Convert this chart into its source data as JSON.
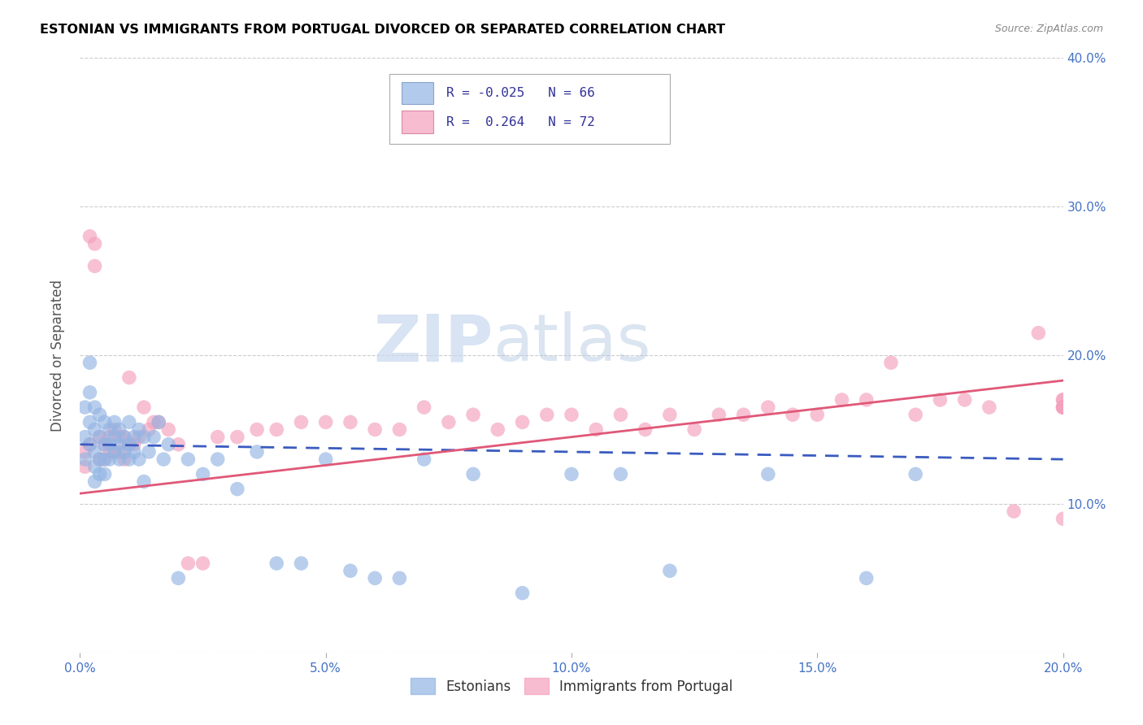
{
  "title": "ESTONIAN VS IMMIGRANTS FROM PORTUGAL DIVORCED OR SEPARATED CORRELATION CHART",
  "source": "Source: ZipAtlas.com",
  "ylabel": "Divorced or Separated",
  "xmin": 0.0,
  "xmax": 0.2,
  "ymin": 0.0,
  "ymax": 0.4,
  "yticks": [
    0.0,
    0.1,
    0.2,
    0.3,
    0.4
  ],
  "xticks": [
    0.0,
    0.05,
    0.1,
    0.15,
    0.2
  ],
  "xtick_labels": [
    "0.0%",
    "5.0%",
    "10.0%",
    "15.0%",
    "20.0%"
  ],
  "ytick_labels": [
    "",
    "10.0%",
    "20.0%",
    "30.0%",
    "40.0%"
  ],
  "series1_label": "Estonians",
  "series1_color": "#92b4e3",
  "series1_line_color": "#3a5bbf",
  "series1_R": -0.025,
  "series1_N": 66,
  "series2_label": "Immigrants from Portugal",
  "series2_color": "#f4a0bc",
  "series2_line_color": "#e05878",
  "series2_R": 0.264,
  "series2_N": 72,
  "watermark_zip": "ZIP",
  "watermark_atlas": "atlas",
  "background_color": "#ffffff",
  "grid_color": "#cccccc",
  "axis_color": "#4472c4",
  "title_color": "#000000",
  "source_color": "#888888",
  "est_trend_x0": 0.0,
  "est_trend_y0": 0.14,
  "est_trend_x1": 0.2,
  "est_trend_y1": 0.13,
  "port_trend_x0": 0.0,
  "port_trend_y0": 0.107,
  "port_trend_x1": 0.2,
  "port_trend_y1": 0.183,
  "estonians_x": [
    0.001,
    0.001,
    0.001,
    0.002,
    0.002,
    0.002,
    0.002,
    0.003,
    0.003,
    0.003,
    0.003,
    0.003,
    0.004,
    0.004,
    0.004,
    0.004,
    0.005,
    0.005,
    0.005,
    0.005,
    0.006,
    0.006,
    0.006,
    0.007,
    0.007,
    0.007,
    0.008,
    0.008,
    0.008,
    0.009,
    0.009,
    0.01,
    0.01,
    0.01,
    0.011,
    0.011,
    0.012,
    0.012,
    0.013,
    0.013,
    0.014,
    0.015,
    0.016,
    0.017,
    0.018,
    0.02,
    0.022,
    0.025,
    0.028,
    0.032,
    0.036,
    0.04,
    0.045,
    0.05,
    0.055,
    0.06,
    0.065,
    0.07,
    0.08,
    0.09,
    0.1,
    0.11,
    0.12,
    0.14,
    0.16,
    0.17
  ],
  "estonians_y": [
    0.165,
    0.145,
    0.13,
    0.195,
    0.175,
    0.155,
    0.14,
    0.165,
    0.15,
    0.135,
    0.125,
    0.115,
    0.16,
    0.145,
    0.13,
    0.12,
    0.155,
    0.14,
    0.13,
    0.12,
    0.15,
    0.14,
    0.13,
    0.155,
    0.145,
    0.135,
    0.15,
    0.14,
    0.13,
    0.145,
    0.135,
    0.155,
    0.14,
    0.13,
    0.145,
    0.135,
    0.15,
    0.13,
    0.145,
    0.115,
    0.135,
    0.145,
    0.155,
    0.13,
    0.14,
    0.05,
    0.13,
    0.12,
    0.13,
    0.11,
    0.135,
    0.06,
    0.06,
    0.13,
    0.055,
    0.05,
    0.05,
    0.13,
    0.12,
    0.04,
    0.12,
    0.12,
    0.055,
    0.12,
    0.05,
    0.12
  ],
  "portugal_x": [
    0.001,
    0.001,
    0.002,
    0.002,
    0.003,
    0.003,
    0.004,
    0.004,
    0.005,
    0.005,
    0.006,
    0.006,
    0.007,
    0.007,
    0.008,
    0.008,
    0.009,
    0.009,
    0.01,
    0.01,
    0.011,
    0.012,
    0.013,
    0.014,
    0.015,
    0.016,
    0.018,
    0.02,
    0.022,
    0.025,
    0.028,
    0.032,
    0.036,
    0.04,
    0.045,
    0.05,
    0.055,
    0.06,
    0.065,
    0.07,
    0.075,
    0.08,
    0.085,
    0.09,
    0.095,
    0.1,
    0.105,
    0.11,
    0.115,
    0.12,
    0.125,
    0.13,
    0.135,
    0.14,
    0.145,
    0.15,
    0.155,
    0.16,
    0.165,
    0.17,
    0.175,
    0.18,
    0.185,
    0.19,
    0.195,
    0.2,
    0.2,
    0.2,
    0.2,
    0.2,
    0.2,
    0.2
  ],
  "portugal_y": [
    0.135,
    0.125,
    0.28,
    0.14,
    0.275,
    0.26,
    0.145,
    0.13,
    0.14,
    0.13,
    0.145,
    0.135,
    0.15,
    0.135,
    0.145,
    0.135,
    0.145,
    0.13,
    0.185,
    0.14,
    0.14,
    0.145,
    0.165,
    0.15,
    0.155,
    0.155,
    0.15,
    0.14,
    0.06,
    0.06,
    0.145,
    0.145,
    0.15,
    0.15,
    0.155,
    0.155,
    0.155,
    0.15,
    0.15,
    0.165,
    0.155,
    0.16,
    0.15,
    0.155,
    0.16,
    0.16,
    0.15,
    0.16,
    0.15,
    0.16,
    0.15,
    0.16,
    0.16,
    0.165,
    0.16,
    0.16,
    0.17,
    0.17,
    0.195,
    0.16,
    0.17,
    0.17,
    0.165,
    0.095,
    0.215,
    0.09,
    0.17,
    0.165,
    0.165,
    0.17,
    0.165,
    0.165
  ]
}
